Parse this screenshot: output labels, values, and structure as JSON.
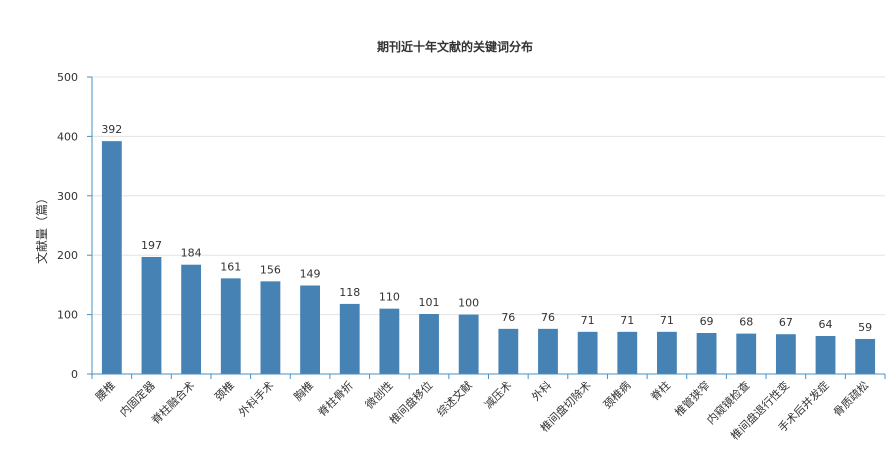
{
  "chart_data": {
    "type": "bar",
    "title": "期刊近十年文献的关键词分布",
    "xlabel": "",
    "ylabel": "文献量（篇）",
    "ylim": [
      0,
      500
    ],
    "yticks": [
      0,
      100,
      200,
      300,
      400,
      500
    ],
    "grid": true,
    "legend": "none",
    "bar_color": "#4682B4",
    "axis_color": "#4a90c2",
    "categories": [
      "腰椎",
      "内固定器",
      "脊柱融合术",
      "颈椎",
      "外科手术",
      "胸椎",
      "脊柱骨折",
      "微创性",
      "椎间盘移位",
      "综述文献",
      "减压术",
      "外科",
      "椎间盘切除术",
      "颈椎病",
      "脊柱",
      "椎管狭窄",
      "内窥镜检查",
      "椎间盘退行性变",
      "手术后并发症",
      "骨质疏松"
    ],
    "values": [
      392,
      197,
      184,
      161,
      156,
      149,
      118,
      110,
      101,
      100,
      76,
      76,
      71,
      71,
      71,
      69,
      68,
      67,
      64,
      59
    ]
  }
}
